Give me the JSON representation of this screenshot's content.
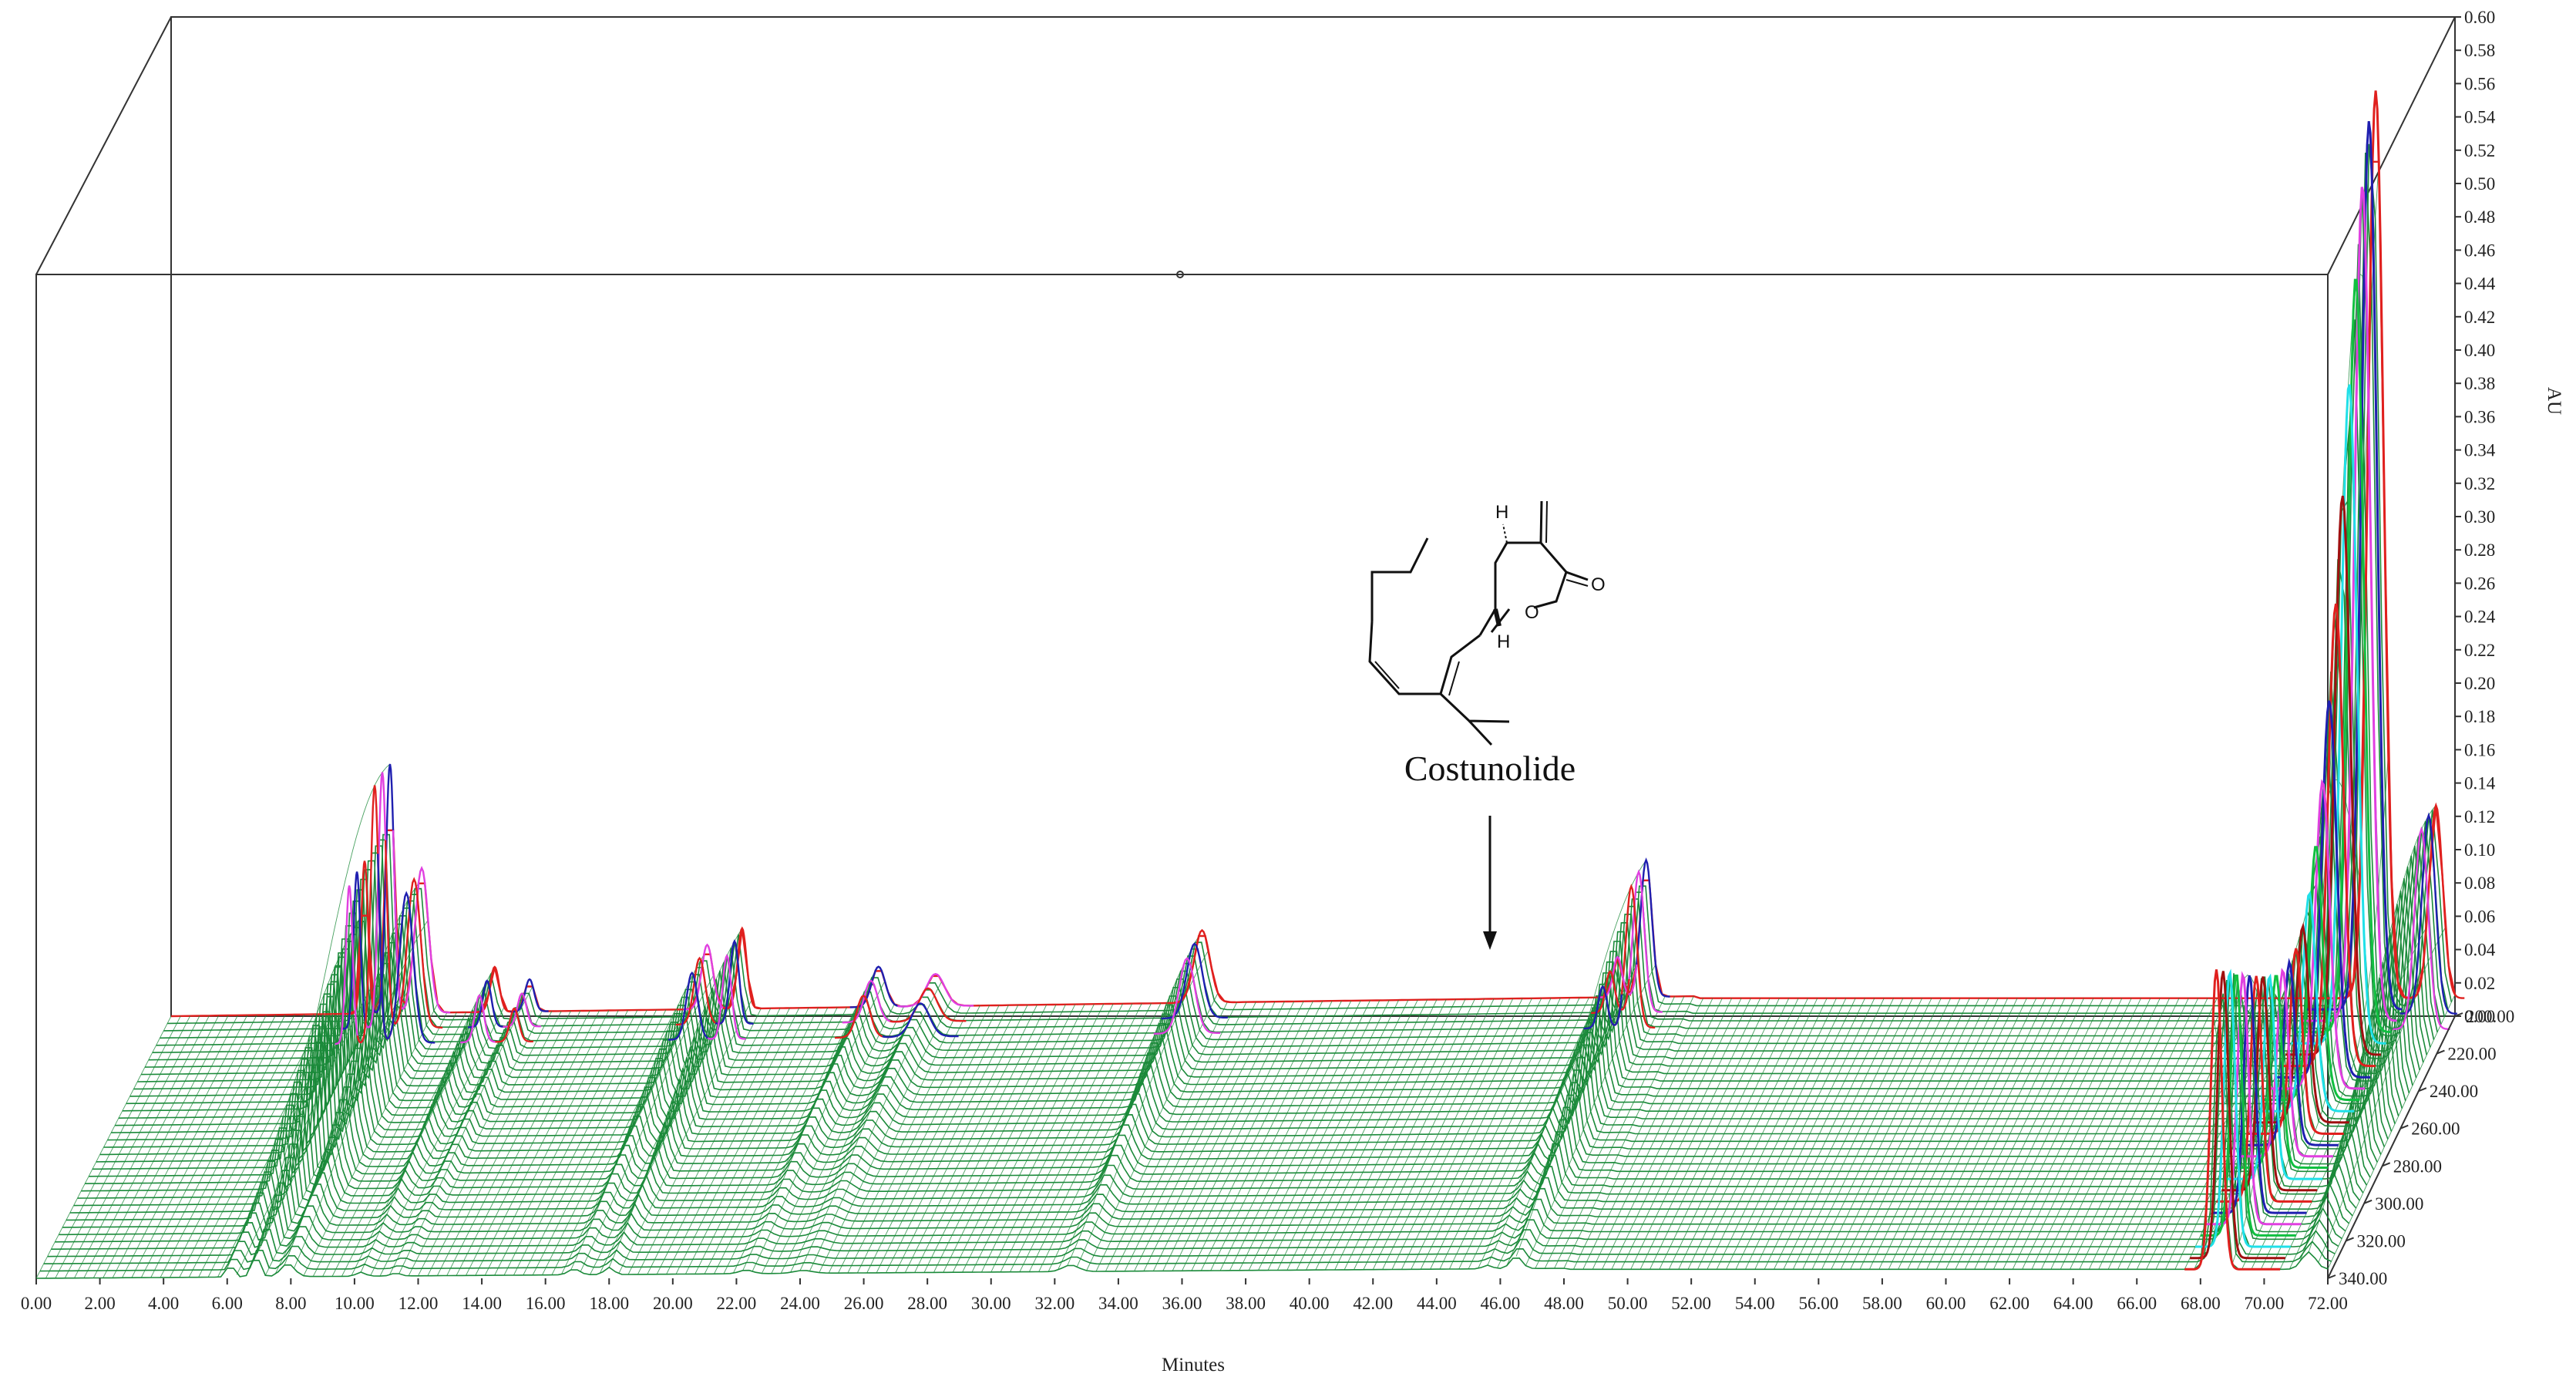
{
  "chart_data": {
    "type": "3d-waterfall",
    "title": "",
    "xlabel": "Minutes",
    "ylabel": "AU",
    "zlabel": "",
    "xlim": [
      0,
      72
    ],
    "ylim": [
      0,
      0.6
    ],
    "zlim": [
      200,
      340
    ],
    "x_ticks": [
      "0.00",
      "2.00",
      "4.00",
      "6.00",
      "8.00",
      "10.00",
      "12.00",
      "14.00",
      "16.00",
      "18.00",
      "20.00",
      "22.00",
      "24.00",
      "26.00",
      "28.00",
      "30.00",
      "32.00",
      "34.00",
      "36.00",
      "38.00",
      "40.00",
      "42.00",
      "44.00",
      "46.00",
      "48.00",
      "50.00",
      "52.00",
      "54.00",
      "56.00",
      "58.00",
      "60.00",
      "62.00",
      "64.00",
      "66.00",
      "68.00",
      "70.00",
      "72.00"
    ],
    "y_ticks": [
      "0.00",
      "0.02",
      "0.04",
      "0.06",
      "0.08",
      "0.10",
      "0.12",
      "0.14",
      "0.16",
      "0.18",
      "0.20",
      "0.22",
      "0.24",
      "0.26",
      "0.28",
      "0.30",
      "0.32",
      "0.34",
      "0.36",
      "0.38",
      "0.40",
      "0.42",
      "0.44",
      "0.46",
      "0.48",
      "0.50",
      "0.52",
      "0.54",
      "0.56",
      "0.58",
      "0.60"
    ],
    "z_ticks": [
      "200.00",
      "220.00",
      "240.00",
      "260.00",
      "280.00",
      "300.00",
      "320.00",
      "340.00"
    ],
    "peaks": [
      {
        "t": 6.1,
        "height": 0.095,
        "width": 0.15
      },
      {
        "t": 6.9,
        "height": 0.155,
        "width": 0.18
      },
      {
        "t": 7.9,
        "height": 0.09,
        "width": 0.3
      },
      {
        "t": 10.2,
        "height": 0.028,
        "width": 0.2
      },
      {
        "t": 11.3,
        "height": 0.02,
        "width": 0.2
      },
      {
        "t": 16.9,
        "height": 0.04,
        "width": 0.25
      },
      {
        "t": 18.0,
        "height": 0.05,
        "width": 0.2
      },
      {
        "t": 22.3,
        "height": 0.025,
        "width": 0.3
      },
      {
        "t": 24.1,
        "height": 0.02,
        "width": 0.4
      },
      {
        "t": 32.5,
        "height": 0.045,
        "width": 0.35
      },
      {
        "t": 46.5,
        "height": 0.085,
        "width": 0.25
      },
      {
        "t": 45.6,
        "height": 0.025,
        "width": 0.2
      },
      {
        "t": 71.4,
        "height": 0.12,
        "width": 0.3
      }
    ],
    "gradient_peak": {
      "t_start": 68.5,
      "t_end": 69.5,
      "height": 0.545
    },
    "baseline_drift": 0.012,
    "annotations": [
      {
        "text": "Costunolide",
        "t": 46.0
      }
    ],
    "colors": {
      "mesh": "#1b8a3a",
      "red": "#e0201e",
      "blue": "#1f1fb0",
      "magenta": "#e040e0",
      "green": "#10c040",
      "cyan": "#20e0e8",
      "darkred": "#a01010"
    }
  },
  "structure": {
    "name": "Costunolide",
    "atom_labels": [
      "H",
      "H",
      "O",
      "O"
    ]
  }
}
